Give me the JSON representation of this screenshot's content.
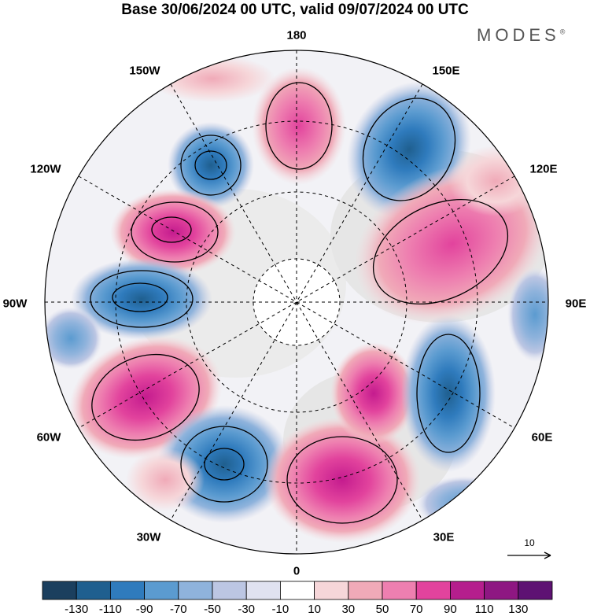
{
  "title": "Base 30/06/2024 00 UTC, valid 09/07/2024 00 UTC",
  "logo": "MODES",
  "logo_mark": "®",
  "longitude_labels": {
    "top": "180",
    "upper_left": "150W",
    "upper_right": "150E",
    "left_high": "120W",
    "right_high": "120E",
    "left": "90W",
    "right": "90E",
    "left_low": "60W",
    "right_low": "60E",
    "lower_left": "30W",
    "lower_right": "30E",
    "bottom": "0"
  },
  "reference_vector": {
    "label": "10"
  },
  "colorbar": {
    "labels": [
      "-130",
      "-110",
      "-90",
      "-70",
      "-50",
      "-30",
      "-10",
      "10",
      "30",
      "50",
      "70",
      "90",
      "110",
      "130"
    ],
    "colors": [
      "#1b3f5e",
      "#1f5f8f",
      "#2f7bbd",
      "#5b9bd0",
      "#8fb3dc",
      "#bcc6e3",
      "#e0e2f0",
      "#ffffff",
      "#f6d6d9",
      "#f0aab8",
      "#ee7fb0",
      "#e2439d",
      "#b51e8d",
      "#8e1782",
      "#5e1273"
    ]
  },
  "colors": {
    "land": "#ebebeb",
    "positive": "#ee7fb0",
    "negative": "#2f7bbd"
  }
}
